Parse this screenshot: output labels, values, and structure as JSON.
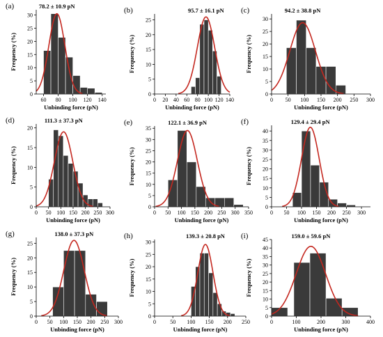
{
  "chart_data": [
    {
      "type": "bar",
      "panel": "(a)",
      "annotation": "78.2 ± 10.9 pN",
      "xlabel": "Unbinding force (pN)",
      "ylabel": "Frequency (%)",
      "xlim": [
        50,
        145
      ],
      "ylim": [
        0,
        32
      ],
      "xticks": [
        60,
        80,
        100,
        120,
        140
      ],
      "yticks": [
        0,
        5,
        10,
        15,
        20,
        25,
        30
      ],
      "bin_width": 10,
      "bin_starts": [
        60,
        70,
        80,
        90,
        100,
        110,
        120,
        130
      ],
      "values": [
        16.5,
        30.5,
        21.5,
        14,
        7,
        2.5,
        2.2,
        0.6
      ],
      "fit": {
        "mean": 78.2,
        "sd": 10.9,
        "peak": 30.5
      }
    },
    {
      "type": "bar",
      "panel": "(b)",
      "annotation": "95.7 ± 16.1 pN",
      "xlabel": "Unbinding force (pN)",
      "ylabel": "Frequency (%)",
      "xlim": [
        0,
        140
      ],
      "ylim": [
        0,
        27
      ],
      "xticks": [
        0,
        20,
        40,
        60,
        80,
        100,
        120,
        140
      ],
      "yticks": [
        0,
        5,
        10,
        15,
        20,
        25
      ],
      "bin_width": 8,
      "bin_starts": [
        68,
        76,
        84,
        92,
        100,
        108,
        116
      ],
      "values": [
        2.5,
        5.5,
        23.5,
        25,
        21.5,
        14.5,
        6
      ],
      "fit": {
        "mean": 95.7,
        "sd": 16.1,
        "peak": 26
      }
    },
    {
      "type": "bar",
      "panel": "(c)",
      "annotation": "94.2 ± 38.8 pN",
      "xlabel": "Unbinding force (pN)",
      "ylabel": "Frequency (%)",
      "xlim": [
        0,
        300
      ],
      "ylim": [
        0,
        32
      ],
      "xticks": [
        0,
        50,
        100,
        150,
        200,
        250,
        300
      ],
      "yticks": [
        0,
        5,
        10,
        15,
        20,
        25,
        30
      ],
      "bin_width": 30,
      "bin_starts": [
        45,
        75,
        105,
        135,
        165,
        195,
        225
      ],
      "values": [
        18.5,
        29.5,
        18.5,
        11,
        11,
        3.5,
        0
      ],
      "fit": {
        "mean": 94.2,
        "sd": 38.8,
        "peak": 28.5
      }
    },
    {
      "type": "bar",
      "panel": "(d)",
      "annotation": "111.3 ± 37.3 pN",
      "xlabel": "Unbinding force (pN)",
      "ylabel": "Frequency (%)",
      "xlim": [
        0,
        300
      ],
      "ylim": [
        0,
        21
      ],
      "xticks": [
        0,
        50,
        100,
        150,
        200,
        250,
        300
      ],
      "yticks": [
        0,
        5,
        10,
        15,
        20
      ],
      "bin_width": 20,
      "bin_starts": [
        50,
        70,
        90,
        110,
        130,
        150,
        170,
        190,
        210,
        230,
        250
      ],
      "values": [
        7,
        19.5,
        18,
        13,
        11,
        9,
        6,
        3,
        2,
        2,
        1
      ],
      "fit": {
        "mean": 111.3,
        "sd": 37.3,
        "peak": 19
      }
    },
    {
      "type": "bar",
      "panel": "(e)",
      "annotation": "122.1 ± 36.9 pN",
      "xlabel": "Unbinding force (pN)",
      "ylabel": "Frequency (%)",
      "xlim": [
        0,
        350
      ],
      "ylim": [
        0,
        36
      ],
      "xticks": [
        0,
        50,
        100,
        150,
        200,
        250,
        300,
        350
      ],
      "yticks": [
        0,
        5,
        10,
        15,
        20,
        25,
        30,
        35
      ],
      "bin_width": 35,
      "bin_starts": [
        50,
        85,
        120,
        155,
        190,
        225,
        260,
        295
      ],
      "values": [
        12,
        34,
        20,
        9,
        4,
        4,
        4,
        1
      ],
      "fit": {
        "mean": 122.1,
        "sd": 36.9,
        "peak": 34
      }
    },
    {
      "type": "bar",
      "panel": "(f)",
      "annotation": "129.4 ± 29.4 pN",
      "xlabel": "Unbinding force (pN)",
      "ylabel": "Frequency (%)",
      "xlim": [
        0,
        330
      ],
      "ylim": [
        0,
        43
      ],
      "xticks": [
        0,
        50,
        100,
        150,
        200,
        250,
        300
      ],
      "yticks": [
        0,
        5,
        10,
        15,
        20,
        25,
        30,
        35,
        40
      ],
      "bin_width": 30,
      "bin_starts": [
        70,
        100,
        130,
        160,
        190,
        220,
        250,
        280
      ],
      "values": [
        7.5,
        40,
        22,
        13,
        4,
        2,
        1,
        0
      ],
      "fit": {
        "mean": 129.4,
        "sd": 29.4,
        "peak": 42
      }
    },
    {
      "type": "bar",
      "panel": "(g)",
      "annotation": "138.0 ± 37.3 pN",
      "xlabel": "Unbinding force (pN)",
      "ylabel": "Frequency (%)",
      "xlim": [
        0,
        300
      ],
      "ylim": [
        0,
        27
      ],
      "xticks": [
        0,
        50,
        100,
        150,
        200,
        250,
        300
      ],
      "yticks": [
        0,
        5,
        10,
        15,
        20,
        25
      ],
      "bin_width": 40,
      "bin_starts": [
        60,
        100,
        140,
        180,
        220
      ],
      "values": [
        10,
        22.5,
        22.5,
        7.5,
        5
      ],
      "fit": {
        "mean": 138.0,
        "sd": 37.3,
        "peak": 26
      }
    },
    {
      "type": "bar",
      "panel": "(h)",
      "annotation": "139.3 ± 20.8 pN",
      "xlabel": "Unbinding force (pN)",
      "ylabel": "Frequency (%)",
      "xlim": [
        0,
        250
      ],
      "ylim": [
        0,
        31
      ],
      "xticks": [
        0,
        50,
        100,
        150,
        200,
        250
      ],
      "yticks": [
        0,
        5,
        10,
        15,
        20,
        25,
        30
      ],
      "bin_width": 12,
      "bin_starts": [
        100,
        112,
        124,
        136,
        148,
        160,
        172,
        184,
        196,
        208
      ],
      "values": [
        12,
        20,
        25.5,
        25.5,
        17.5,
        9.5,
        5,
        2,
        1.5,
        1
      ],
      "fit": {
        "mean": 139.3,
        "sd": 20.8,
        "peak": 29
      }
    },
    {
      "type": "bar",
      "panel": "(i)",
      "annotation": "159.0 ± 59.6 pN",
      "xlabel": "Unbinding force (pN)",
      "ylabel": "Frequency (%)",
      "xlim": [
        0,
        400
      ],
      "ylim": [
        0,
        45
      ],
      "xticks": [
        0,
        100,
        200,
        300,
        400
      ],
      "yticks": [
        0,
        5,
        10,
        15,
        20,
        25,
        30,
        35,
        40,
        45
      ],
      "bin_width": 65,
      "bin_starts": [
        0,
        90,
        155,
        220,
        285
      ],
      "values": [
        5,
        31.5,
        37,
        10.5,
        5
      ],
      "fit": {
        "mean": 159.0,
        "sd": 59.6,
        "peak": 41
      }
    }
  ],
  "colors": {
    "bar": "#3a3a3a",
    "fit": "#c4271f",
    "axis": "#000000"
  }
}
